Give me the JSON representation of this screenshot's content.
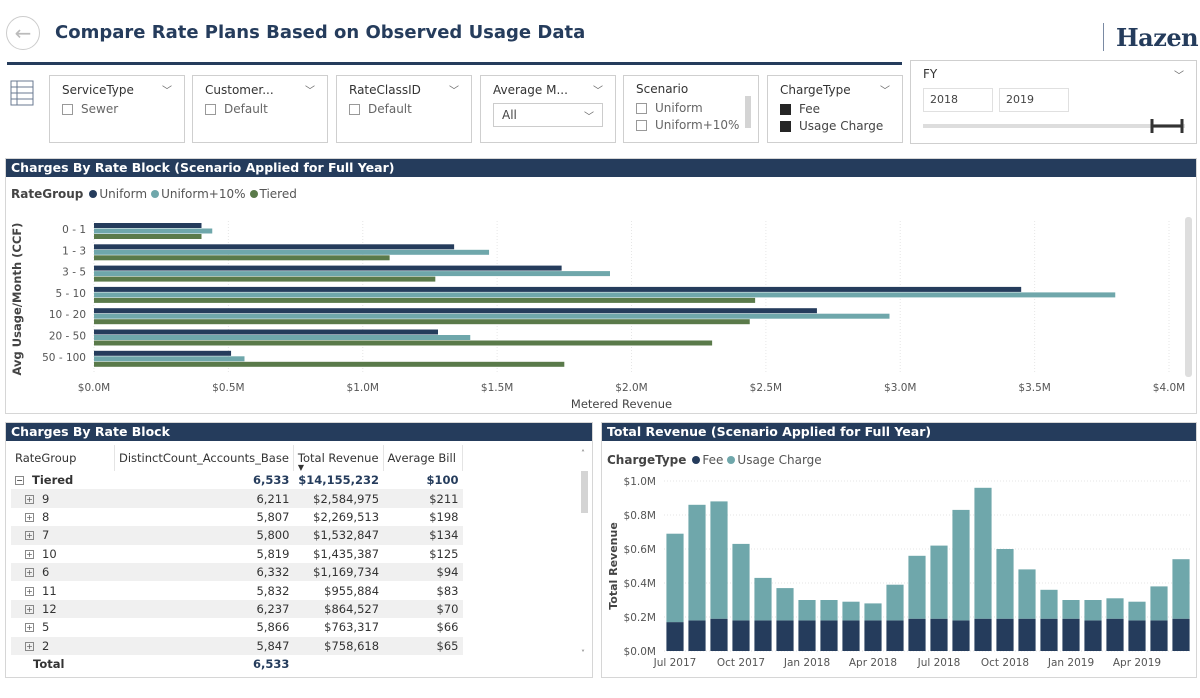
{
  "header": {
    "title": "Compare Rate Plans Based on Observed Usage Data",
    "logo": "Hazen"
  },
  "slicers": [
    {
      "label": "ServiceType",
      "options": [
        {
          "text": "Sewer",
          "checked": false
        }
      ]
    },
    {
      "label": "Customer...",
      "options": [
        {
          "text": "Default",
          "checked": false
        }
      ]
    },
    {
      "label": "RateClassID",
      "options": [
        {
          "text": "Default",
          "checked": false
        }
      ]
    },
    {
      "label": "Average M...",
      "dropdown_value": "All"
    },
    {
      "label": "Scenario",
      "options": [
        {
          "text": "Uniform",
          "checked": false
        },
        {
          "text": "Uniform+10%",
          "checked": false
        }
      ]
    },
    {
      "label": "ChargeType",
      "options": [
        {
          "text": "Fee",
          "checked": true
        },
        {
          "text": "Usage Charge",
          "checked": true
        }
      ]
    }
  ],
  "fy": {
    "label": "FY",
    "start": "2018",
    "end": "2019"
  },
  "rate_block_chart": {
    "title": "Charges By Rate Block (Scenario Applied for Full Year)",
    "legend_title": "RateGroup",
    "colors": {
      "Uniform": "#253c5c",
      "Uniform+10%": "#6fa7ab",
      "Tiered": "#5a7a4a"
    }
  },
  "table": {
    "title": "Charges By Rate Block",
    "columns": [
      "RateGroup",
      "DistinctCount_Accounts_Base",
      "Total Revenue",
      "Average Bill"
    ],
    "group": {
      "name": "Tiered",
      "count": "6,533",
      "revenue": "$14,155,232",
      "bill": "$100"
    },
    "rows": [
      {
        "name": "9",
        "count": "6,211",
        "revenue": "$2,584,975",
        "bill": "$211"
      },
      {
        "name": "8",
        "count": "5,807",
        "revenue": "$2,269,513",
        "bill": "$198"
      },
      {
        "name": "7",
        "count": "5,800",
        "revenue": "$1,532,847",
        "bill": "$134"
      },
      {
        "name": "10",
        "count": "5,819",
        "revenue": "$1,435,387",
        "bill": "$125"
      },
      {
        "name": "6",
        "count": "6,332",
        "revenue": "$1,169,734",
        "bill": "$94"
      },
      {
        "name": "11",
        "count": "5,832",
        "revenue": "$955,884",
        "bill": "$83"
      },
      {
        "name": "12",
        "count": "6,237",
        "revenue": "$864,527",
        "bill": "$70"
      },
      {
        "name": "5",
        "count": "5,866",
        "revenue": "$763,317",
        "bill": "$66"
      },
      {
        "name": "2",
        "count": "5,847",
        "revenue": "$758,618",
        "bill": "$65"
      }
    ],
    "total": {
      "name": "Total",
      "count": "6,533"
    }
  },
  "revenue_chart": {
    "title": "Total Revenue (Scenario Applied for Full Year)",
    "legend_title": "ChargeType",
    "colors": {
      "Fee": "#253c5c",
      "Usage Charge": "#6fa7ab"
    }
  },
  "chart_data": [
    {
      "type": "bar",
      "orientation": "horizontal",
      "categories": [
        "0 - 1",
        "1 - 3",
        "3 - 5",
        "5 - 10",
        "10 - 20",
        "20 - 50",
        "50 - 100"
      ],
      "series": [
        {
          "name": "Uniform",
          "values": [
            0.4,
            1.34,
            1.74,
            3.45,
            2.69,
            1.28,
            0.51
          ]
        },
        {
          "name": "Uniform+10%",
          "values": [
            0.44,
            1.47,
            1.92,
            3.8,
            2.96,
            1.4,
            0.56
          ]
        },
        {
          "name": "Tiered",
          "values": [
            0.4,
            1.1,
            1.27,
            2.46,
            2.44,
            2.3,
            1.75
          ]
        }
      ],
      "xlabel": "Metered Revenue",
      "ylabel": "Avg Usage/Month (CCF)",
      "xlim": [
        0,
        4.0
      ],
      "xticks": [
        "$0.0M",
        "$0.5M",
        "$1.0M",
        "$1.5M",
        "$2.0M",
        "$2.5M",
        "$3.0M",
        "$3.5M",
        "$4.0M"
      ],
      "legend_position": "top-left"
    },
    {
      "type": "bar",
      "stacked": true,
      "x": [
        "Jul 2017",
        "Aug 2017",
        "Sep 2017",
        "Oct 2017",
        "Nov 2017",
        "Dec 2017",
        "Jan 2018",
        "Feb 2018",
        "Mar 2018",
        "Apr 2018",
        "May 2018",
        "Jun 2018",
        "Jul 2018",
        "Aug 2018",
        "Sep 2018",
        "Oct 2018",
        "Nov 2018",
        "Dec 2018",
        "Jan 2019",
        "Feb 2019",
        "Mar 2019",
        "Apr 2019",
        "May 2019",
        "Jun 2019"
      ],
      "series": [
        {
          "name": "Fee",
          "values": [
            0.17,
            0.18,
            0.19,
            0.18,
            0.18,
            0.18,
            0.18,
            0.18,
            0.18,
            0.18,
            0.18,
            0.19,
            0.19,
            0.18,
            0.19,
            0.19,
            0.19,
            0.19,
            0.19,
            0.18,
            0.19,
            0.18,
            0.18,
            0.19
          ]
        },
        {
          "name": "Usage Charge",
          "values": [
            0.52,
            0.68,
            0.69,
            0.45,
            0.25,
            0.19,
            0.12,
            0.12,
            0.11,
            0.1,
            0.21,
            0.37,
            0.43,
            0.65,
            0.77,
            0.41,
            0.29,
            0.17,
            0.11,
            0.12,
            0.12,
            0.11,
            0.2,
            0.35
          ]
        }
      ],
      "ylabel": "Total Revenue",
      "ylim": [
        0,
        1.0
      ],
      "yticks": [
        "$0.0M",
        "$0.2M",
        "$0.4M",
        "$0.6M",
        "$0.8M",
        "$1.0M"
      ],
      "xticks": [
        "Jul 2017",
        "Oct 2017",
        "Jan 2018",
        "Apr 2018",
        "Jul 2018",
        "Oct 2018",
        "Jan 2019",
        "Apr 2019"
      ],
      "legend_position": "top-left"
    }
  ]
}
